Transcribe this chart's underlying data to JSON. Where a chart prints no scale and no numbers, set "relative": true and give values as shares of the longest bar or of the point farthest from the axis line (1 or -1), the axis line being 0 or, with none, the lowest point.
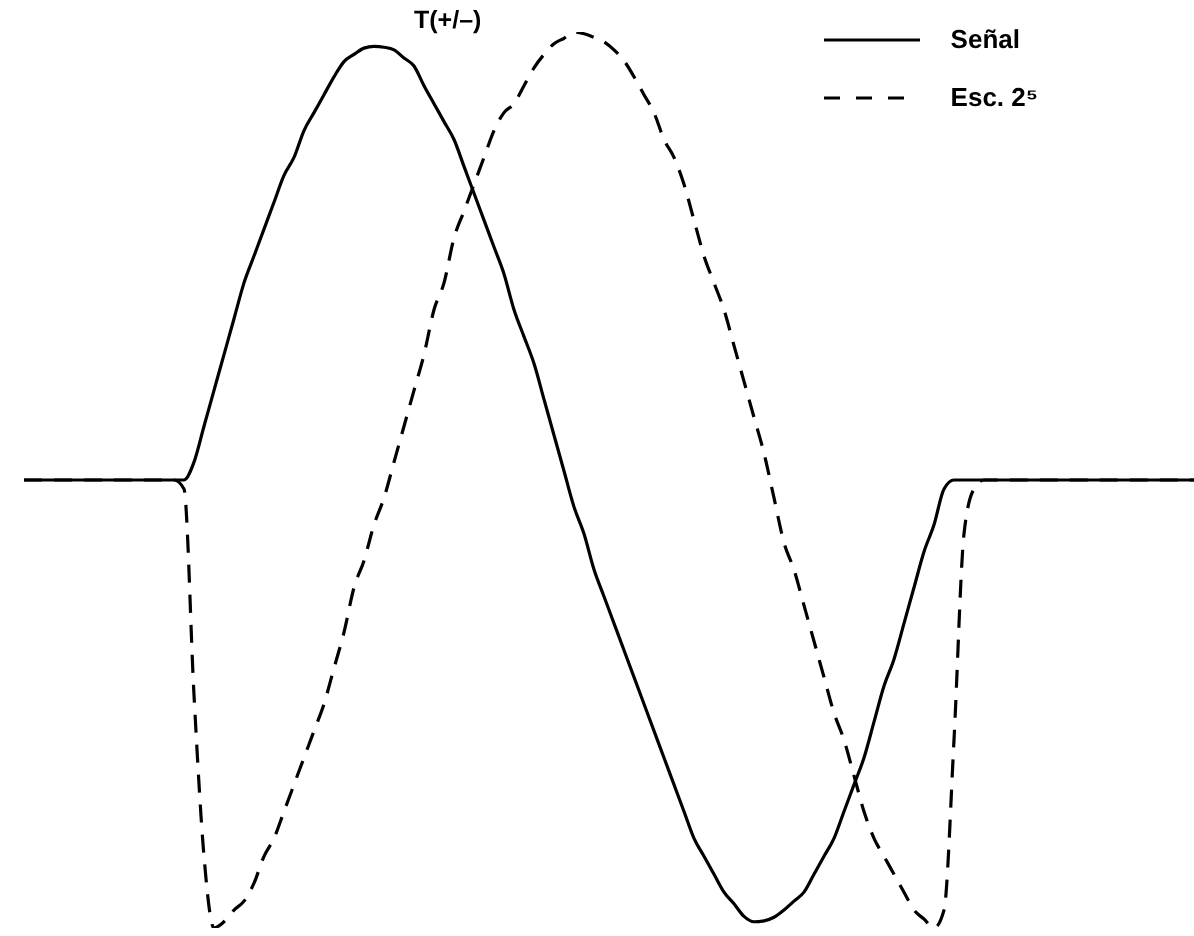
{
  "chart_data": {
    "type": "line",
    "relative": true,
    "categories": [
      null,
      null,
      null,
      null,
      null,
      null,
      null,
      null,
      null,
      null,
      null,
      null,
      null,
      null,
      null,
      null,
      null,
      null,
      null,
      null,
      null,
      null,
      null,
      null,
      null,
      null,
      null,
      null,
      null,
      null,
      null,
      null,
      null,
      null,
      null,
      null,
      null,
      null,
      null,
      null,
      null,
      null,
      null,
      null,
      null,
      null,
      null,
      null,
      null,
      null,
      null,
      null,
      null,
      null,
      null,
      null,
      null,
      null,
      null,
      null,
      null,
      null,
      null,
      null,
      null,
      null,
      null,
      null,
      null,
      null,
      null,
      null,
      null,
      null,
      null,
      null,
      null,
      null,
      null,
      null,
      null,
      null,
      null,
      null,
      null,
      null,
      null,
      null,
      null,
      null,
      null,
      null,
      null,
      null,
      null,
      null,
      null,
      null,
      null,
      null,
      null,
      null,
      null,
      null,
      null,
      null,
      null,
      null,
      null,
      null,
      null,
      null,
      null,
      null,
      null,
      null,
      null,
      null
    ],
    "series": [
      {
        "name": "Señal",
        "color": "#000000",
        "line_style": "solid",
        "values": [
          0.5,
          0.5,
          0.5,
          0.5,
          0.5,
          0.5,
          0.5,
          0.5,
          0.5,
          0.5,
          0.5,
          0.5,
          0.5,
          0.5,
          0.5,
          0.5,
          0.5,
          0.52,
          0.56,
          0.6,
          0.64,
          0.68,
          0.72,
          0.75,
          0.78,
          0.81,
          0.84,
          0.86,
          0.89,
          0.91,
          0.93,
          0.95,
          0.967,
          0.975,
          0.982,
          0.984,
          0.983,
          0.98,
          0.971,
          0.962,
          0.94,
          0.92,
          0.9,
          0.88,
          0.85,
          0.82,
          0.79,
          0.76,
          0.73,
          0.69,
          0.66,
          0.63,
          0.59,
          0.55,
          0.51,
          0.47,
          0.44,
          0.4,
          0.37,
          0.34,
          0.31,
          0.28,
          0.25,
          0.22,
          0.19,
          0.16,
          0.13,
          0.1,
          0.08,
          0.06,
          0.04,
          0.027,
          0.013,
          0.007,
          0.008,
          0.012,
          0.02,
          0.03,
          0.04,
          0.06,
          0.08,
          0.1,
          0.13,
          0.16,
          0.19,
          0.23,
          0.27,
          0.3,
          0.34,
          0.38,
          0.42,
          0.45,
          0.49,
          0.5,
          0.5,
          0.5,
          0.5,
          0.5,
          0.5,
          0.5,
          0.5,
          0.5,
          0.5,
          0.5,
          0.5,
          0.5,
          0.5,
          0.5,
          0.5,
          0.5,
          0.5,
          0.5,
          0.5,
          0.5,
          0.5,
          0.5,
          0.5,
          0.5
        ]
      },
      {
        "name": "Esc. 2⁵",
        "color": "#000000",
        "line_style": "dashed",
        "values": [
          0.5,
          0.5,
          0.5,
          0.5,
          0.5,
          0.5,
          0.5,
          0.5,
          0.5,
          0.5,
          0.5,
          0.5,
          0.5,
          0.5,
          0.5,
          0.5,
          0.49,
          0.26,
          0.08,
          0,
          0.007,
          0.02,
          0.03,
          0.05,
          0.08,
          0.1,
          0.13,
          0.16,
          0.19,
          0.22,
          0.25,
          0.29,
          0.33,
          0.38,
          0.41,
          0.45,
          0.48,
          0.52,
          0.56,
          0.6,
          0.64,
          0.69,
          0.72,
          0.77,
          0.8,
          0.83,
          0.86,
          0.89,
          0.91,
          0.92,
          0.94,
          0.96,
          0.975,
          0.987,
          0.993,
          1,
          0.998,
          0.994,
          0.989,
          0.98,
          0.968,
          0.95,
          0.93,
          0.91,
          0.88,
          0.86,
          0.83,
          0.79,
          0.75,
          0.72,
          0.69,
          0.65,
          0.61,
          0.57,
          0.53,
          0.48,
          0.43,
          0.4,
          0.36,
          0.32,
          0.28,
          0.24,
          0.21,
          0.17,
          0.13,
          0.1,
          0.08,
          0.06,
          0.04,
          0.02,
          0.01,
          0,
          0.02,
          0.21,
          0.44,
          0.49,
          0.5,
          0.5,
          0.5,
          0.5,
          0.5,
          0.5,
          0.5,
          0.5,
          0.5,
          0.5,
          0.5,
          0.5,
          0.5,
          0.5,
          0.5,
          0.5,
          0.5,
          0.5,
          0.5,
          0.5,
          0.5,
          0.5
        ]
      }
    ],
    "annotations": [
      "T(+/–)"
    ],
    "legend": "top right"
  }
}
